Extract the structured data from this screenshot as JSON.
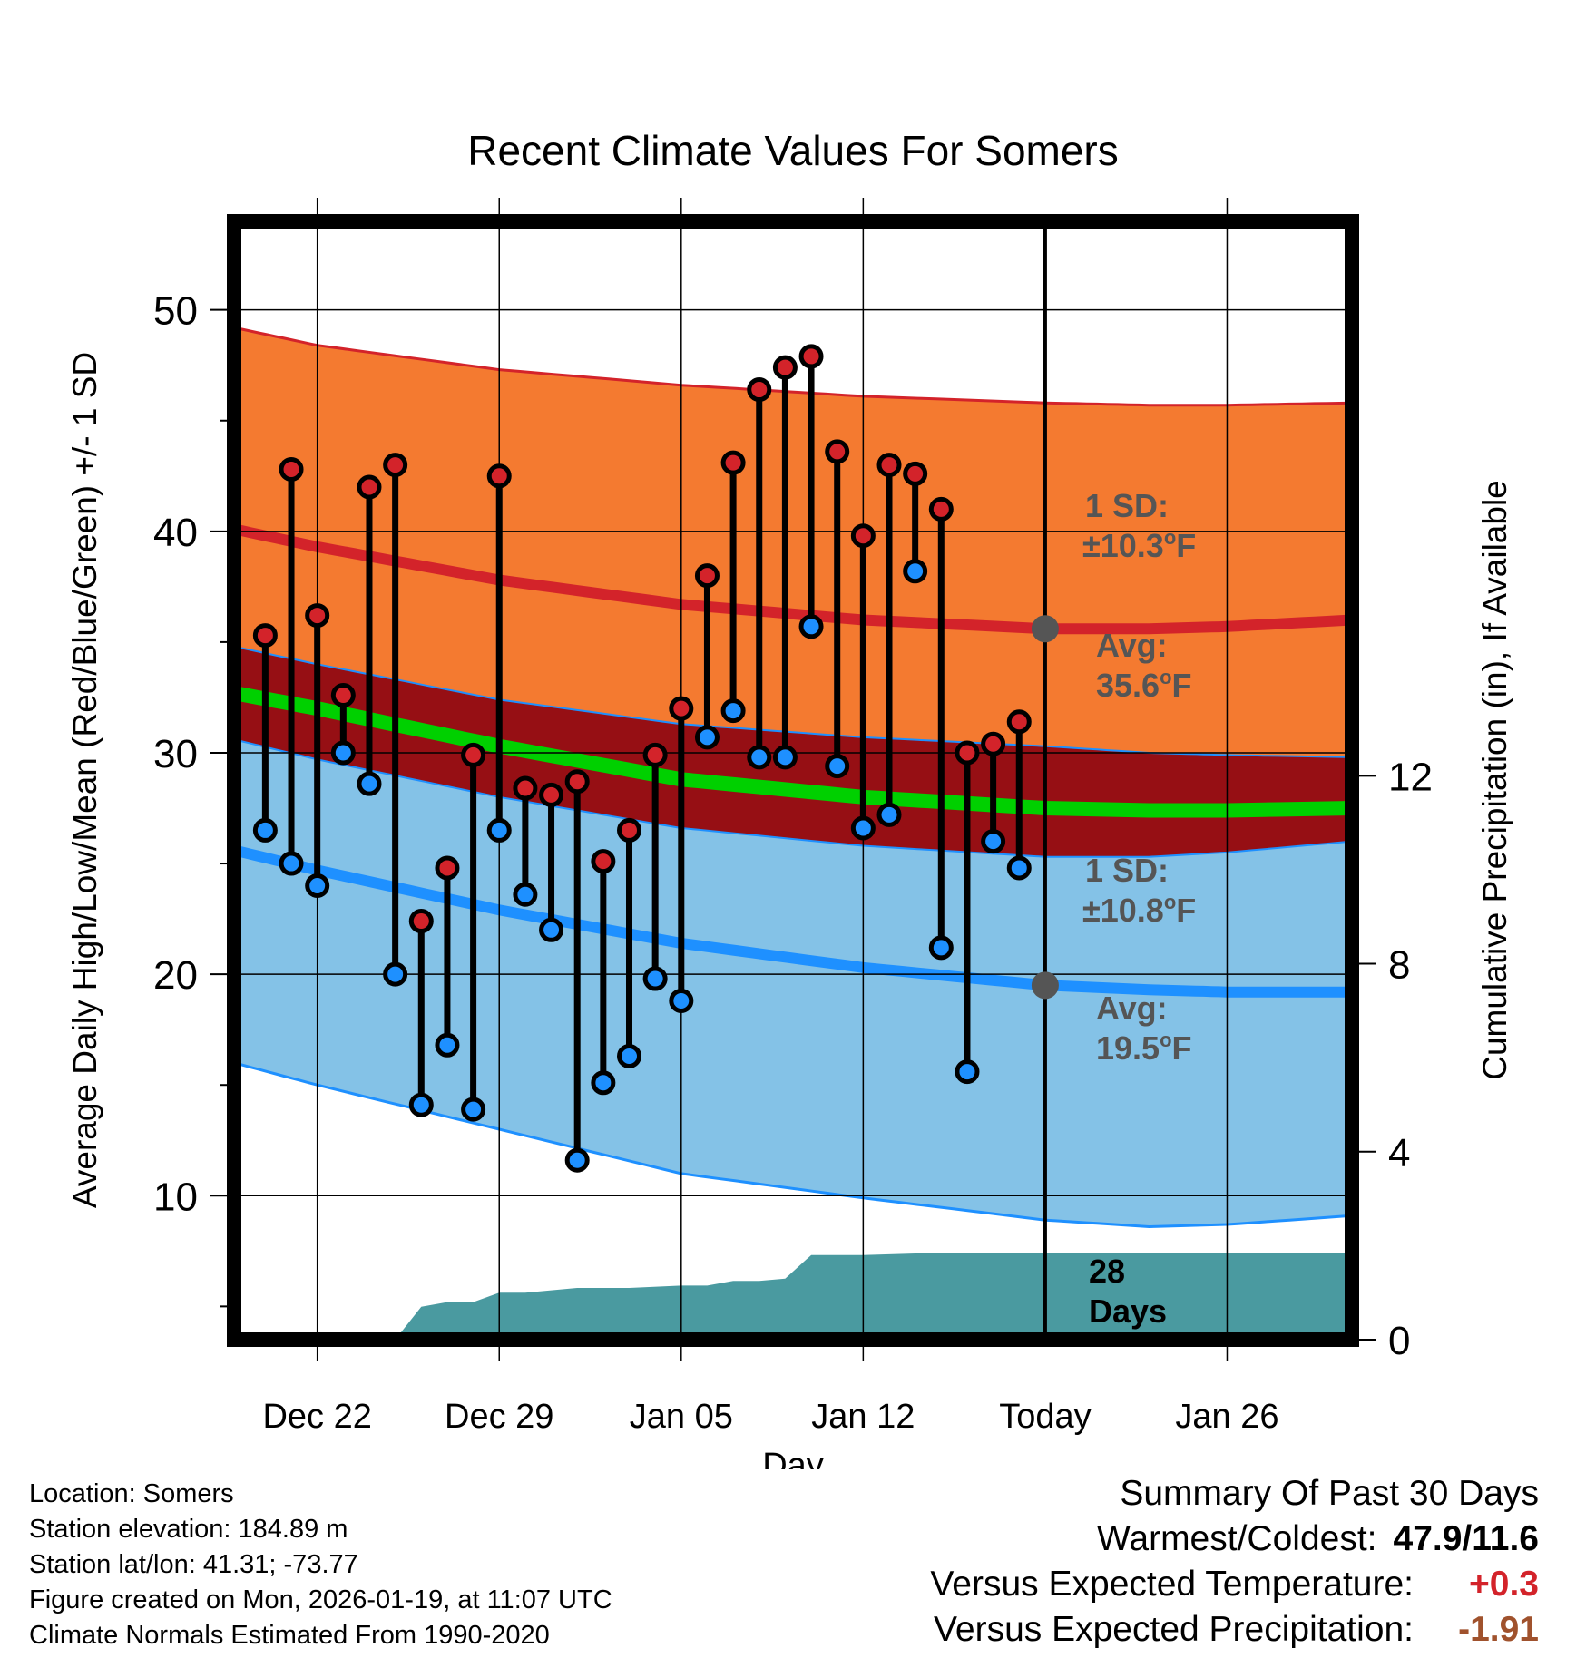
{
  "chart_data": {
    "type": "line",
    "title": "Recent Climate Values For Somers",
    "xlabel": "Day",
    "ylabel": "Average Daily High/Low/Mean (Red/Blue/Green) +/- 1 SD",
    "ylabel_right": "Cumulative Precipitation (in), If Available",
    "ylim": [
      3.5,
      54
    ],
    "ylim_right": [
      0,
      23.8
    ],
    "xlim": [
      -3.2,
      39.8
    ],
    "x_ticks": [
      {
        "x": 0,
        "label": "Dec 22"
      },
      {
        "x": 7,
        "label": "Dec 29"
      },
      {
        "x": 14,
        "label": "Jan 05"
      },
      {
        "x": 21,
        "label": "Jan 12"
      },
      {
        "x": 28,
        "label": "Today"
      },
      {
        "x": 35,
        "label": "Jan 26"
      }
    ],
    "y_ticks": [
      10,
      20,
      30,
      40,
      50
    ],
    "y_ticks_right": [
      0,
      4,
      8,
      12
    ],
    "grid": true,
    "today_x": 28,
    "normals_x": [
      -3.2,
      0,
      7,
      14,
      21,
      28,
      32,
      35,
      39.8
    ],
    "normal_high": [
      40.1,
      39.3,
      37.8,
      36.7,
      36.0,
      35.6,
      35.6,
      35.7,
      36.0
    ],
    "normal_high_upper": [
      49.2,
      48.4,
      47.3,
      46.6,
      46.1,
      45.8,
      45.7,
      45.7,
      45.8
    ],
    "normal_high_lower": [
      34.8,
      34.0,
      32.4,
      31.3,
      30.7,
      30.3,
      30.0,
      29.9,
      29.8
    ],
    "normal_low": [
      25.6,
      24.7,
      22.9,
      21.4,
      20.3,
      19.5,
      19.3,
      19.2,
      19.2
    ],
    "normal_low_upper": [
      30.6,
      29.7,
      28.0,
      26.6,
      25.8,
      25.3,
      25.3,
      25.5,
      26.0
    ],
    "normal_low_lower": [
      16.0,
      15.0,
      13.0,
      11.0,
      9.9,
      8.9,
      8.6,
      8.7,
      9.1
    ],
    "normal_mean": [
      32.7,
      32.0,
      30.3,
      28.8,
      28.0,
      27.5,
      27.4,
      27.4,
      27.5
    ],
    "daily_x": [
      -2,
      -1,
      0,
      1,
      2,
      3,
      4,
      5,
      6,
      7,
      8,
      9,
      10,
      11,
      12,
      13,
      14,
      15,
      16,
      17,
      18,
      19,
      20,
      21,
      22,
      23,
      24,
      25,
      26,
      27
    ],
    "daily_high": [
      35.3,
      42.8,
      36.2,
      32.6,
      42.0,
      43.0,
      22.4,
      24.8,
      29.9,
      42.5,
      28.4,
      28.1,
      28.7,
      25.1,
      26.5,
      29.9,
      32.0,
      38.0,
      43.1,
      46.4,
      47.4,
      47.9,
      43.6,
      39.8,
      43.0,
      42.6,
      41.0,
      30.0,
      30.4,
      31.4
    ],
    "daily_low": [
      26.5,
      25.0,
      24.0,
      30.0,
      28.6,
      20.0,
      14.1,
      16.8,
      13.9,
      26.5,
      23.6,
      22.0,
      11.6,
      15.1,
      16.3,
      19.8,
      18.8,
      30.7,
      31.9,
      29.8,
      29.8,
      35.7,
      29.4,
      26.6,
      27.2,
      38.2,
      21.2,
      15.6,
      26.0,
      24.8
    ],
    "precip_x": [
      -3.2,
      0,
      3,
      4,
      5,
      6,
      7,
      8,
      10,
      12,
      14,
      15,
      16,
      17,
      18,
      19,
      20,
      21,
      24,
      28,
      39.8
    ],
    "precip_cum": [
      0,
      0,
      0,
      0.7,
      0.8,
      0.8,
      1.0,
      1.0,
      1.1,
      1.1,
      1.15,
      1.15,
      1.25,
      1.25,
      1.3,
      1.8,
      1.8,
      1.8,
      1.85,
      1.85,
      1.85
    ],
    "annotations": {
      "high_sd_line1": "1 SD:",
      "high_sd_line2": "±10.3",
      "high_avg_line1": "Avg:",
      "high_avg_line2": "35.6",
      "low_sd_line1": "1 SD:",
      "low_sd_line2": "±10.8",
      "low_avg_line1": "Avg:",
      "low_avg_line2": "19.5",
      "deg_sup": "o",
      "unit": "F",
      "days_line1": "28",
      "days_line2": "Days"
    },
    "colors": {
      "high_band": "#f47a30",
      "high_line": "#d3232a",
      "low_band": "#84c2e7",
      "low_line": "#1e90ff",
      "overlap_band": "#960f14",
      "mean_line": "#00d000",
      "precip_fill": "#4a9aa0",
      "high_dot": "#d3232a",
      "low_dot": "#1e90ff",
      "marker_gray": "#555555",
      "annotation_gray": "#555555"
    }
  },
  "info": {
    "location": "Location: Somers",
    "elevation": "Station elevation: 184.89 m",
    "latlon": "Station lat/lon: 41.31; -73.77",
    "created": "Figure created on Mon, 2026-01-19, at 11:07 UTC",
    "normals": "Climate Normals Estimated From 1990-2020"
  },
  "summary": {
    "title": "Summary Of Past 30 Days",
    "warm_cold_label": "Warmest/Coldest:",
    "warm_cold_value": "47.9/11.6",
    "temp_label": "Versus Expected Temperature:",
    "temp_value": "+0.3",
    "temp_color": "#d3232a",
    "precip_label": "Versus Expected Precipitation:",
    "precip_value": "-1.91",
    "precip_color": "#a0522d"
  }
}
